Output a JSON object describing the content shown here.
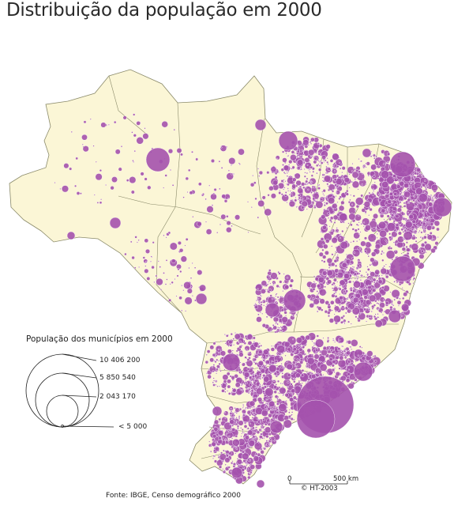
{
  "title": "Distribuição da população em 2000",
  "legend": {
    "title": "População dos municípios em 2000",
    "values": [
      "10 406 200",
      "5 850 540",
      "2 043 170",
      "< 5 000"
    ]
  },
  "scale": {
    "start": "0",
    "end": "500 km"
  },
  "copyright": "© HT-2003",
  "source": "Fonte: IBGE, Censo demográfico 2000",
  "colors": {
    "land": "#fbf6d6",
    "border": "#8a8a6a",
    "bubble": "#a452ad",
    "bubble_stroke": "#ffffff"
  }
}
